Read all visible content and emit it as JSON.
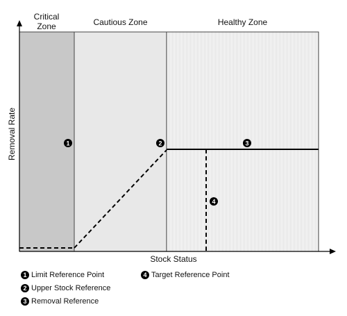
{
  "diagram": {
    "zones": [
      {
        "label": "Critical Zone",
        "fill": "#c8c8c8"
      },
      {
        "label": "Cautious Zone",
        "fill": "#e8e8e8"
      },
      {
        "label": "Healthy Zone",
        "fill": "#f4f4f4"
      }
    ],
    "x_axis_label": "Stock Status",
    "y_axis_label": "Removal Rate",
    "markers": [
      "1",
      "2",
      "3",
      "4"
    ],
    "legend": [
      {
        "num": "1",
        "label": "Limit Reference Point"
      },
      {
        "num": "2",
        "label": "Upper Stock Reference"
      },
      {
        "num": "3",
        "label": "Removal Reference"
      },
      {
        "num": "4",
        "label": "Target Reference Point"
      }
    ]
  }
}
